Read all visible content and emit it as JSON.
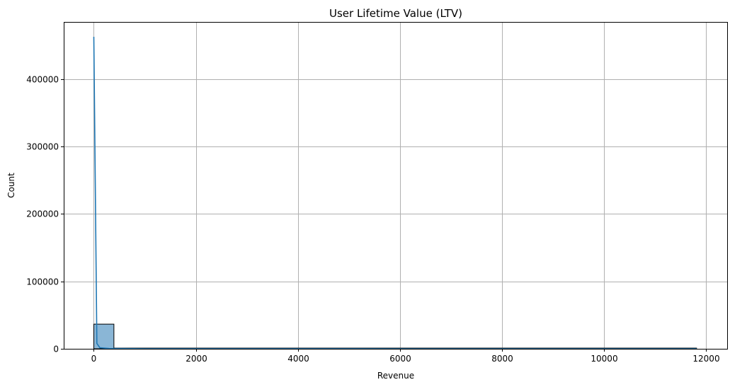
{
  "chart_data": {
    "type": "histogram",
    "title": "User Lifetime Value (LTV)",
    "xlabel": "Revenue",
    "ylabel": "Count",
    "xlim": [
      -590,
      12420
    ],
    "ylim": [
      0,
      485000
    ],
    "x_ticks": [
      0,
      2000,
      4000,
      6000,
      8000,
      10000,
      12000
    ],
    "y_ticks": [
      0,
      100000,
      200000,
      300000,
      400000
    ],
    "grid": true,
    "bins": [
      {
        "start": 0,
        "end": 394,
        "count": 36600
      },
      {
        "start": 394,
        "end": 788,
        "count": 250
      },
      {
        "start": 788,
        "end": 1182,
        "count": 80
      },
      {
        "start": 1182,
        "end": 1576,
        "count": 40
      },
      {
        "start": 1576,
        "end": 1970,
        "count": 25
      },
      {
        "start": 1970,
        "end": 2364,
        "count": 15
      },
      {
        "start": 2364,
        "end": 11820,
        "count": 5
      }
    ],
    "bar_color": "#8ab6d6",
    "bar_edge_color": "#000000",
    "kde_color": "#1f77b4",
    "kde_curve": {
      "x": [
        0,
        30,
        60,
        120,
        300,
        1000,
        3000,
        6000,
        9000,
        11820
      ],
      "y": [
        463000,
        230000,
        8000,
        1500,
        400,
        150,
        60,
        30,
        20,
        10
      ]
    }
  }
}
